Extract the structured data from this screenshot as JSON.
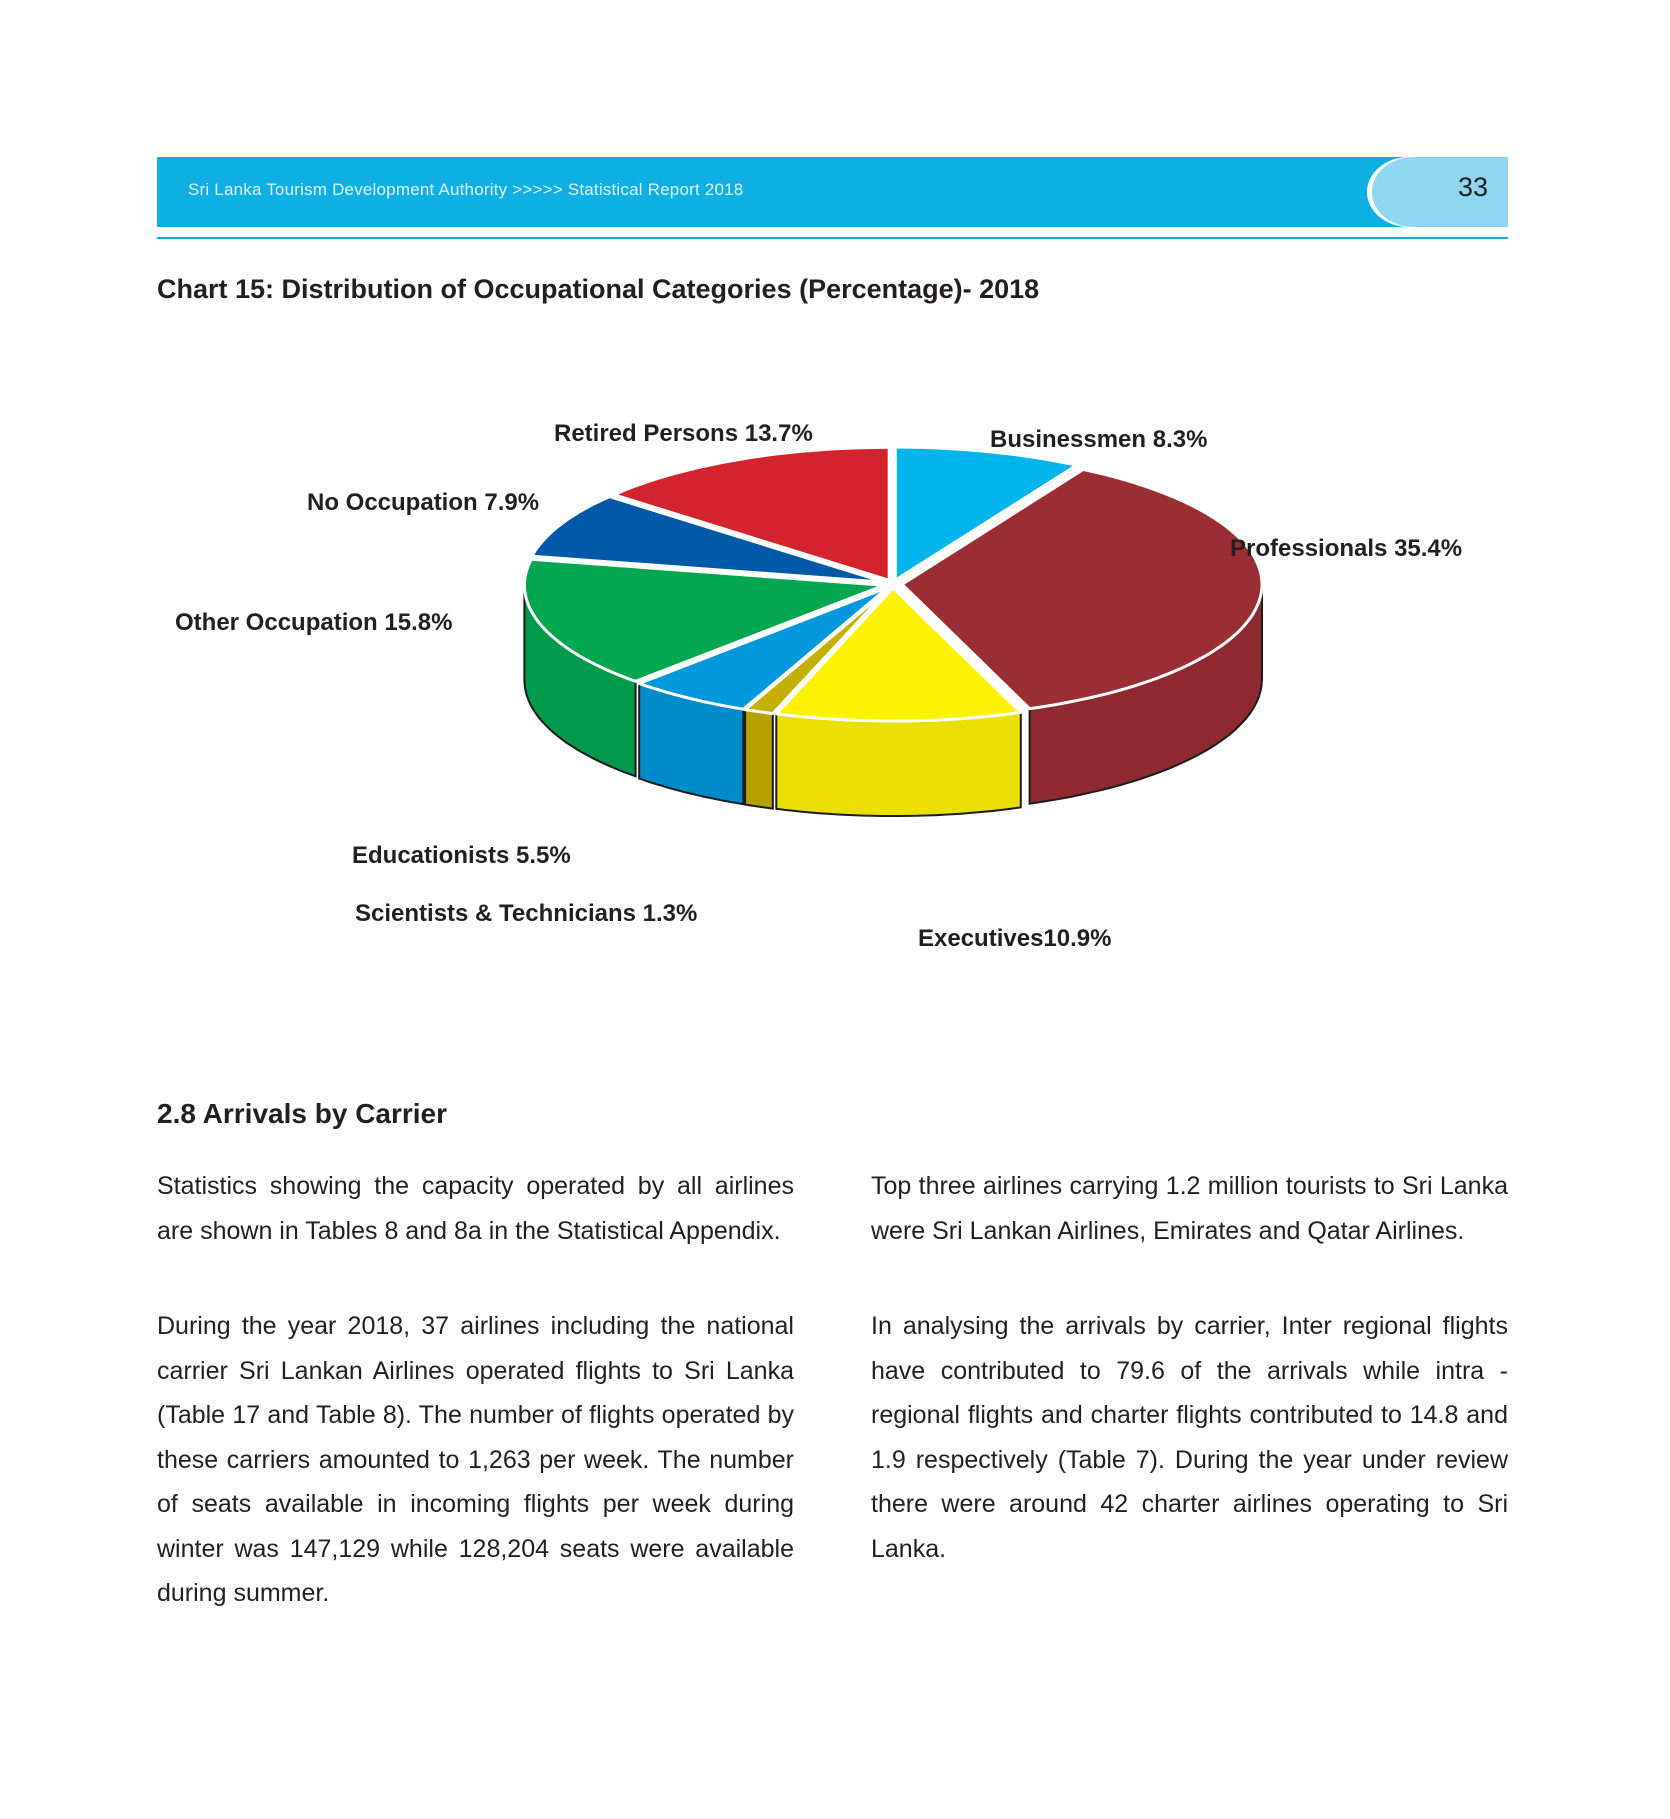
{
  "header": {
    "running_title": "Sri Lanka Tourism Development Authority >>>>> Statistical Report 2018",
    "page_number": "33",
    "band_color": "#0eafe3",
    "tab_color": "#8fd7f1"
  },
  "chart_title": "Chart 15: Distribution of Occupational Categories (Percentage)- 2018",
  "chart_data": {
    "type": "pie",
    "title": "Chart 15: Distribution of Occupational Categories (Percentage)- 2018",
    "style": "3d-exploded",
    "slices": [
      {
        "label": "Businessmen 8.3%",
        "value": 8.3,
        "color": "#00b4ec"
      },
      {
        "label": "Professionals 35.4%",
        "value": 35.4,
        "color": "#9b2d34"
      },
      {
        "label": "Executives10.9%",
        "value": 10.9,
        "color": "#fff200"
      },
      {
        "label": "Scientists & Technicians 1.3%",
        "value": 1.3,
        "color": "#c4b000"
      },
      {
        "label": "Educationists 5.5%",
        "value": 5.5,
        "color": "#0098dc"
      },
      {
        "label": "Other Occupation 15.8%",
        "value": 15.8,
        "color": "#00a650"
      },
      {
        "label": "No Occupation 7.9%",
        "value": 7.9,
        "color": "#0059a8"
      },
      {
        "label": "Retired Persons 13.7%",
        "value": 13.7,
        "color": "#d3232d"
      }
    ]
  },
  "section": {
    "title": "2.8 Arrivals by Carrier",
    "left_paragraphs": [
      "Statistics showing the capacity operated by all airlines are shown in Tables 8 and 8a in the Statistical Appendix.",
      "During the year 2018, 37 airlines including the national carrier Sri Lankan Airlines operated flights to Sri Lanka (Table 17 and Table 8). The number of flights operated by these carriers amounted to 1,263 per week. The number of seats available in incoming flights per week during winter was 147,129 while 128,204 seats were available during summer."
    ],
    "right_paragraphs": [
      "Top three airlines carrying 1.2 million tourists to Sri Lanka were Sri Lankan Airlines, Emirates and Qatar Airlines.",
      "In analysing the arrivals by carrier, Inter regional flights have contributed to 79.6 of the arrivals while intra - regional flights and charter flights contributed to 14.8 and 1.9 respectively (Table 7). During the year under review there were around 42 charter airlines operating to Sri Lanka."
    ]
  }
}
